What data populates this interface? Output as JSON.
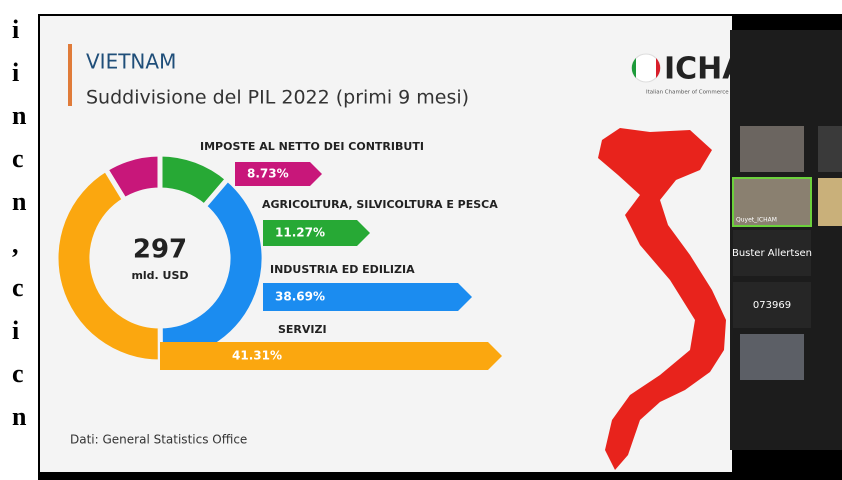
{
  "chart_data": {
    "type": "donut",
    "title": "VIETNAM",
    "subtitle": "Suddivisione del PIL 2022 (primi 9 mesi)",
    "total": 297,
    "total_unit": "mld. USD",
    "categories": [
      "IMPOSTE AL NETTO DEI CONTRIBUTI",
      "AGRICOLTURA, SILVICOLTURA E PESCA",
      "INDUSTRIA ED EDILIZIA",
      "SERVIZI"
    ],
    "values": [
      8.73,
      11.27,
      38.69,
      41.31
    ],
    "value_labels": [
      "8.73%",
      "11.27%",
      "38.69%",
      "41.31%"
    ],
    "colors": [
      "#c8177a",
      "#27a935",
      "#1b8cf0",
      "#fba70f"
    ],
    "source": "Dati: General Statistics Office"
  },
  "logo": {
    "name": "ICHA",
    "tagline": "Italian Chamber of Commerce i"
  },
  "participants": [
    "Quyet_ICHAM",
    "Buster Allertsen",
    "073969"
  ],
  "side_text": [
    "i",
    "i",
    "n",
    "c",
    "n",
    ",",
    "c",
    "i",
    "c",
    "n"
  ]
}
